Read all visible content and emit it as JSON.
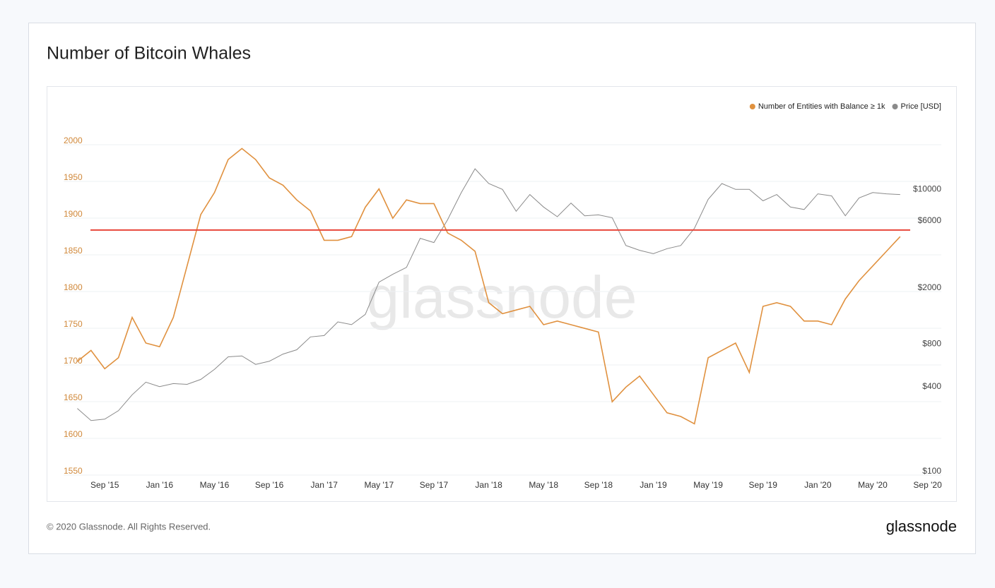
{
  "chart_data": {
    "type": "line",
    "title": "Number of Bitcoin Whales",
    "x": [
      "2015-07",
      "2015-08",
      "2015-09",
      "2015-10",
      "2015-11",
      "2015-12",
      "2016-01",
      "2016-02",
      "2016-03",
      "2016-04",
      "2016-05",
      "2016-06",
      "2016-07",
      "2016-08",
      "2016-09",
      "2016-10",
      "2016-11",
      "2016-12",
      "2017-01",
      "2017-02",
      "2017-03",
      "2017-04",
      "2017-05",
      "2017-06",
      "2017-07",
      "2017-08",
      "2017-09",
      "2017-10",
      "2017-11",
      "2017-12",
      "2018-01",
      "2018-02",
      "2018-03",
      "2018-04",
      "2018-05",
      "2018-06",
      "2018-07",
      "2018-08",
      "2018-09",
      "2018-10",
      "2018-11",
      "2018-12",
      "2019-01",
      "2019-02",
      "2019-03",
      "2019-04",
      "2019-05",
      "2019-06",
      "2019-07",
      "2019-08",
      "2019-09",
      "2019-10",
      "2019-11",
      "2019-12",
      "2020-01",
      "2020-02",
      "2020-03",
      "2020-04",
      "2020-05",
      "2020-06",
      "2020-07"
    ],
    "xlim": [
      "2015-06",
      "2020-10"
    ],
    "xticks": [
      {
        "value": "2015-09",
        "label": "Sep '15"
      },
      {
        "value": "2016-01",
        "label": "Jan '16"
      },
      {
        "value": "2016-05",
        "label": "May '16"
      },
      {
        "value": "2016-09",
        "label": "Sep '16"
      },
      {
        "value": "2017-01",
        "label": "Jan '17"
      },
      {
        "value": "2017-05",
        "label": "May '17"
      },
      {
        "value": "2017-09",
        "label": "Sep '17"
      },
      {
        "value": "2018-01",
        "label": "Jan '18"
      },
      {
        "value": "2018-05",
        "label": "May '18"
      },
      {
        "value": "2018-09",
        "label": "Sep '18"
      },
      {
        "value": "2019-01",
        "label": "Jan '19"
      },
      {
        "value": "2019-05",
        "label": "May '19"
      },
      {
        "value": "2019-09",
        "label": "Sep '19"
      },
      {
        "value": "2020-01",
        "label": "Jan '20"
      },
      {
        "value": "2020-05",
        "label": "May '20"
      },
      {
        "value": "2020-09",
        "label": "Sep '20"
      }
    ],
    "ylim": [
      1550,
      2050
    ],
    "yticks": [
      1550,
      1600,
      1650,
      1700,
      1750,
      1800,
      1850,
      1900,
      1950,
      2000
    ],
    "y2lim": [
      100,
      40000
    ],
    "y2_log": true,
    "y2ticks": [
      {
        "value": 100,
        "label": "$100"
      },
      {
        "value": 400,
        "label": "$400"
      },
      {
        "value": 800,
        "label": "$800"
      },
      {
        "value": 2000,
        "label": "$2000"
      },
      {
        "value": 6000,
        "label": "$6000"
      },
      {
        "value": 10000,
        "label": "$10000"
      }
    ],
    "grid": true,
    "legend": "top-right",
    "reference_line": {
      "value": 1879,
      "color": "#e8463a"
    },
    "series": [
      {
        "name": "Number of Entities with Balance ≥ 1k",
        "color": "#e0913f",
        "values": [
          1700,
          1715,
          1690,
          1705,
          1760,
          1725,
          1720,
          1760,
          1830,
          1900,
          1930,
          1975,
          1990,
          1975,
          1950,
          1940,
          1920,
          1905,
          1865,
          1865,
          1870,
          1910,
          1935,
          1895,
          1920,
          1915,
          1915,
          1875,
          1865,
          1850,
          1780,
          1765,
          1770,
          1775,
          1750,
          1755,
          1750,
          1745,
          1740,
          1645,
          1665,
          1680,
          1655,
          1630,
          1625,
          1615,
          1705,
          1715,
          1725,
          1685,
          1775,
          1780,
          1775,
          1755,
          1755,
          1750,
          1785,
          1810,
          1830,
          1850,
          1870
        ]
      },
      {
        "name": "Price [USD]",
        "color": "#8a8a8a",
        "axis": "y2",
        "values": [
          280,
          230,
          235,
          270,
          350,
          430,
          400,
          420,
          415,
          450,
          530,
          650,
          660,
          575,
          605,
          680,
          730,
          900,
          920,
          1150,
          1100,
          1300,
          2200,
          2500,
          2800,
          4500,
          4200,
          6100,
          9500,
          14000,
          11000,
          10000,
          7000,
          9200,
          7500,
          6400,
          8000,
          6500,
          6600,
          6300,
          4000,
          3700,
          3500,
          3800,
          4000,
          5300,
          8500,
          11000,
          10000,
          10000,
          8300,
          9200,
          7500,
          7200,
          9300,
          9000,
          6500,
          8700,
          9500,
          9300,
          9200
        ]
      }
    ]
  },
  "watermark": "glassnode",
  "footer": {
    "copyright": "© 2020 Glassnode. All Rights Reserved.",
    "brand": "glassnode"
  }
}
